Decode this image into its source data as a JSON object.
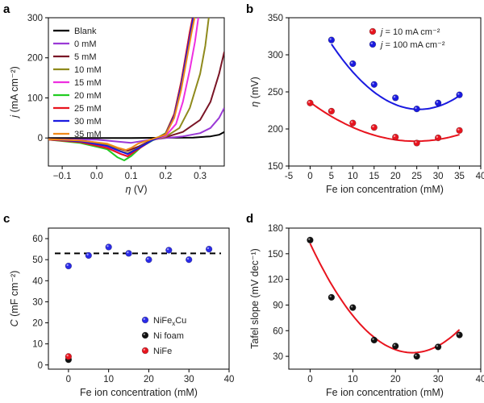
{
  "chart_data": [
    {
      "panel": "a",
      "type": "line",
      "xlabel_var": "η",
      "xlabel_unit": " (V)",
      "ylabel_var": "j",
      "ylabel_unit": " (mA cm⁻²)",
      "xlim": [
        -0.14,
        0.37
      ],
      "ylim": [
        -70,
        300
      ],
      "xticks": [
        -0.1,
        0.0,
        0.1,
        0.2,
        0.3
      ],
      "xtick_labels": [
        "−0.1",
        "0.0",
        "0.1",
        "0.2",
        "0.3"
      ],
      "yticks": [
        0,
        100,
        200,
        300
      ],
      "ytick_labels": [
        "0",
        "100",
        "200",
        "300"
      ],
      "legend_position": "top-left",
      "series": [
        {
          "name": "Blank",
          "color": "#000000",
          "x": [
            -0.14,
            0.0,
            0.1,
            0.2,
            0.28,
            0.33,
            0.355,
            0.37
          ],
          "y": [
            0,
            0,
            0,
            0.5,
            1,
            4,
            8,
            15
          ]
        },
        {
          "name": "0 mM",
          "color": "#9a39d6",
          "x": [
            -0.14,
            0.0,
            0.05,
            0.1,
            0.15,
            0.2,
            0.25,
            0.3,
            0.33,
            0.355,
            0.37
          ],
          "y": [
            -3,
            -4,
            -8,
            -12,
            -5,
            0,
            4,
            12,
            25,
            50,
            75
          ]
        },
        {
          "name": "5 mM",
          "color": "#7a1526",
          "x": [
            -0.14,
            -0.05,
            0.03,
            0.07,
            0.09,
            0.12,
            0.16,
            0.2,
            0.25,
            0.3,
            0.33,
            0.355,
            0.37
          ],
          "y": [
            -3,
            -6,
            -15,
            -28,
            -32,
            -22,
            -5,
            2,
            15,
            45,
            90,
            160,
            215
          ]
        },
        {
          "name": "10 mM",
          "color": "#8f8a1c",
          "x": [
            -0.14,
            -0.05,
            0.03,
            0.07,
            0.09,
            0.12,
            0.16,
            0.2,
            0.24,
            0.27,
            0.3,
            0.315,
            0.325
          ],
          "y": [
            -3,
            -7,
            -18,
            -33,
            -38,
            -25,
            -6,
            3,
            25,
            75,
            160,
            230,
            300
          ]
        },
        {
          "name": "15 mM",
          "color": "#ee2fe0",
          "x": [
            -0.14,
            -0.05,
            0.03,
            0.07,
            0.09,
            0.12,
            0.16,
            0.2,
            0.23,
            0.25,
            0.27,
            0.285,
            0.295
          ],
          "y": [
            -3,
            -9,
            -22,
            -40,
            -45,
            -28,
            -6,
            5,
            35,
            90,
            170,
            240,
            300
          ]
        },
        {
          "name": "20 mM",
          "color": "#22cc22",
          "x": [
            -0.14,
            -0.05,
            0.03,
            0.06,
            0.08,
            0.1,
            0.13,
            0.17,
            0.2,
            0.225,
            0.245,
            0.26,
            0.27,
            0.279
          ],
          "y": [
            -4,
            -12,
            -28,
            -48,
            -56,
            -45,
            -22,
            -2,
            12,
            60,
            140,
            210,
            265,
            300
          ]
        },
        {
          "name": "25 mM",
          "color": "#e8141e",
          "x": [
            -0.14,
            -0.05,
            0.03,
            0.07,
            0.09,
            0.12,
            0.16,
            0.2,
            0.225,
            0.245,
            0.26,
            0.27,
            0.278
          ],
          "y": [
            -4,
            -10,
            -25,
            -40,
            -46,
            -28,
            -6,
            10,
            60,
            140,
            215,
            265,
            300
          ]
        },
        {
          "name": "30 mM",
          "color": "#1a1ae0",
          "x": [
            -0.14,
            -0.05,
            0.03,
            0.07,
            0.09,
            0.12,
            0.16,
            0.2,
            0.225,
            0.245,
            0.26,
            0.272,
            0.28
          ],
          "y": [
            -3,
            -8,
            -20,
            -34,
            -40,
            -26,
            -6,
            8,
            55,
            130,
            205,
            260,
            300
          ]
        },
        {
          "name": "35 mM",
          "color": "#f08a1a",
          "x": [
            -0.14,
            -0.05,
            0.03,
            0.06,
            0.085,
            0.1,
            0.12,
            0.16,
            0.2,
            0.225,
            0.245,
            0.262,
            0.275,
            0.284
          ],
          "y": [
            -3,
            -6,
            -14,
            -24,
            -30,
            -25,
            -14,
            -3,
            8,
            50,
            120,
            200,
            262,
            300
          ]
        }
      ]
    },
    {
      "panel": "b",
      "type": "scatter",
      "xlabel": "Fe ion concentration (mM)",
      "ylabel_var": "η",
      "ylabel_unit": " (mV)",
      "xlim": [
        -5,
        40
      ],
      "ylim": [
        150,
        350
      ],
      "xticks": [
        -5,
        0,
        5,
        10,
        15,
        20,
        25,
        30,
        35,
        40
      ],
      "yticks": [
        150,
        200,
        250,
        300,
        350
      ],
      "legend_position": "top-right",
      "series": [
        {
          "name_var": "j",
          "name_rest": " = 10 mA cm⁻²",
          "color": "#e8141e",
          "x": [
            0,
            5,
            10,
            15,
            20,
            25,
            30,
            35
          ],
          "y": [
            235,
            224,
            208,
            202,
            189,
            181,
            188,
            198
          ],
          "fit_coeffs": [
            236,
            -4.24,
            0.0856
          ]
        },
        {
          "name_var": "j",
          "name_rest": " = 100 mA cm⁻²",
          "color": "#1a1ae0",
          "x": [
            5,
            10,
            15,
            20,
            25,
            30,
            35
          ],
          "y": [
            320,
            288,
            260,
            242,
            227,
            235,
            246
          ],
          "fit_coeffs": [
            362.5,
            -10.64,
            0.208
          ]
        }
      ]
    },
    {
      "panel": "c",
      "type": "scatter",
      "xlabel": "Fe ion concentration (mM)",
      "ylabel_var": "C",
      "ylabel_unit": " (mF cm⁻²)",
      "xlim": [
        -5,
        40
      ],
      "ylim": [
        -2,
        65
      ],
      "xticks": [
        0,
        10,
        20,
        30,
        40
      ],
      "yticks": [
        0,
        10,
        20,
        30,
        40,
        50,
        60
      ],
      "reference_line": 53,
      "legend_position": "bottom-right",
      "series": [
        {
          "name_main": "NiFe",
          "name_sub": "x",
          "name_tail": "Cu",
          "color": "#2a2ae8",
          "x": [
            0,
            5,
            10,
            15,
            20,
            25,
            30,
            35
          ],
          "y": [
            47,
            52,
            56,
            53,
            50,
            54.5,
            50,
            55
          ]
        },
        {
          "name": "Ni foam",
          "color": "#111111",
          "x": [
            0
          ],
          "y": [
            2.5
          ]
        },
        {
          "name": "NiFe",
          "color": "#e8141e",
          "x": [
            0
          ],
          "y": [
            4
          ]
        }
      ]
    },
    {
      "panel": "d",
      "type": "scatter",
      "xlabel": "Fe ion concentration (mM)",
      "ylabel": "Tafel slope (mV dec⁻¹)",
      "xlim": [
        -5,
        40
      ],
      "ylim": [
        15,
        180
      ],
      "xticks": [
        0,
        10,
        20,
        30,
        40
      ],
      "yticks": [
        30,
        60,
        90,
        120,
        150,
        180
      ],
      "series": [
        {
          "color": "#111111",
          "x": [
            0,
            5,
            10,
            15,
            20,
            25,
            30,
            35
          ],
          "y": [
            166,
            99,
            87,
            49,
            42,
            30,
            41,
            55
          ],
          "fit_coeffs": [
            162,
            -10.65,
            0.222
          ],
          "fit_color": "#e8141e"
        }
      ]
    }
  ]
}
